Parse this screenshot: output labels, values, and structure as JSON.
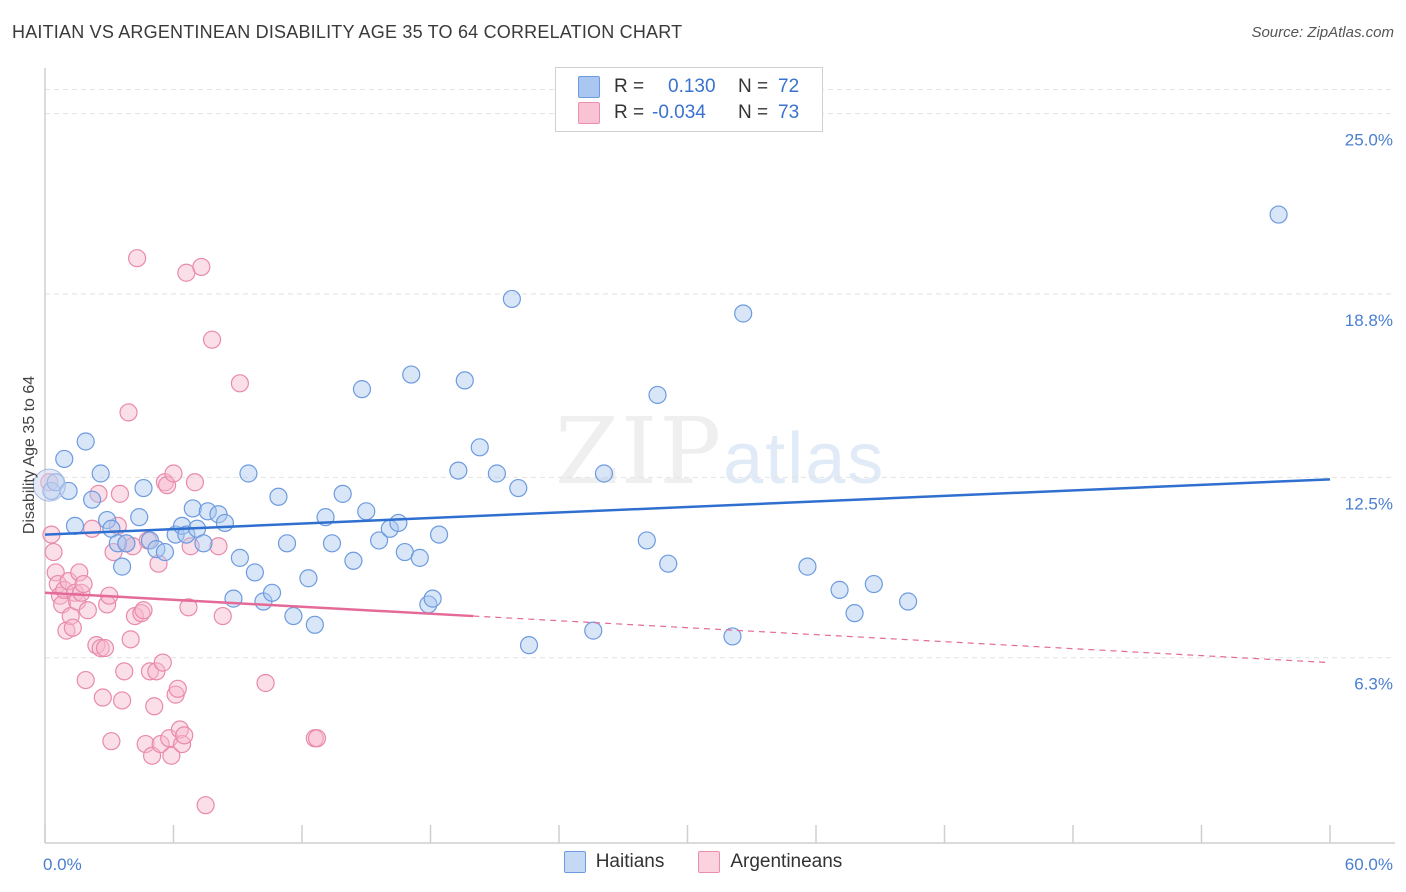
{
  "title": "HAITIAN VS ARGENTINEAN DISABILITY AGE 35 TO 64 CORRELATION CHART",
  "source": "Source: ZipAtlas.com",
  "watermark": {
    "zip": "ZIP",
    "atlas": "atlas"
  },
  "legend": {
    "rows": [
      {
        "r_label": "R =",
        "r_value": "0.130",
        "n_label": "N =",
        "n_value": "72",
        "color": "#a9c7f0",
        "border": "#6d9be0"
      },
      {
        "r_label": "R =",
        "r_value": "-0.034",
        "n_label": "N =",
        "n_value": "73",
        "color": "#f9c3d3",
        "border": "#ec8fae"
      }
    ]
  },
  "bottom_legend": [
    "Haitians",
    "Argentineans"
  ],
  "chart_data": {
    "type": "scatter",
    "title": "HAITIAN VS ARGENTINEAN DISABILITY AGE 35 TO 64 CORRELATION CHART",
    "xlabel": "",
    "ylabel": "Disability Age 35 to 64",
    "xlim": [
      0,
      60
    ],
    "ylim": [
      0,
      26.5
    ],
    "x_tick_labels": [
      "0.0%",
      "60.0%"
    ],
    "y_ticks": [
      6.3,
      12.5,
      18.8,
      25.0
    ],
    "y_tick_labels": [
      "6.3%",
      "12.5%",
      "18.8%",
      "25.0%"
    ],
    "grid": true,
    "legend_position": "top-center",
    "colors": {
      "haitians": "#6d9be0",
      "argentineans": "#ec8fae",
      "haitians_line": "#2f6fcf",
      "argentineans_line": "#e46a97"
    },
    "series": [
      {
        "name": "Haitians",
        "points": [
          [
            0.3,
            12.1
          ],
          [
            0.5,
            12.4
          ],
          [
            0.9,
            13.2
          ],
          [
            1.1,
            12.1
          ],
          [
            1.4,
            10.9
          ],
          [
            1.9,
            13.8
          ],
          [
            2.2,
            11.8
          ],
          [
            2.6,
            12.7
          ],
          [
            2.9,
            11.1
          ],
          [
            3.1,
            10.8
          ],
          [
            3.4,
            10.3
          ],
          [
            3.6,
            9.5
          ],
          [
            3.8,
            10.3
          ],
          [
            4.4,
            11.2
          ],
          [
            4.6,
            12.2
          ],
          [
            4.9,
            10.4
          ],
          [
            5.2,
            10.1
          ],
          [
            5.6,
            10.0
          ],
          [
            6.1,
            10.6
          ],
          [
            6.4,
            10.9
          ],
          [
            6.6,
            10.6
          ],
          [
            6.9,
            11.5
          ],
          [
            7.1,
            10.8
          ],
          [
            7.4,
            10.3
          ],
          [
            7.6,
            11.4
          ],
          [
            8.1,
            11.3
          ],
          [
            8.4,
            11.0
          ],
          [
            8.8,
            8.4
          ],
          [
            9.1,
            9.8
          ],
          [
            9.5,
            12.7
          ],
          [
            9.8,
            9.3
          ],
          [
            10.2,
            8.3
          ],
          [
            10.6,
            8.6
          ],
          [
            10.9,
            11.9
          ],
          [
            11.3,
            10.3
          ],
          [
            11.6,
            7.8
          ],
          [
            12.3,
            9.1
          ],
          [
            12.6,
            7.5
          ],
          [
            13.1,
            11.2
          ],
          [
            13.4,
            10.3
          ],
          [
            13.9,
            12.0
          ],
          [
            14.4,
            9.7
          ],
          [
            14.8,
            15.6
          ],
          [
            15.0,
            11.4
          ],
          [
            15.6,
            10.4
          ],
          [
            16.1,
            10.8
          ],
          [
            16.5,
            11.0
          ],
          [
            16.8,
            10.0
          ],
          [
            17.1,
            16.1
          ],
          [
            17.5,
            9.8
          ],
          [
            17.9,
            8.2
          ],
          [
            18.1,
            8.4
          ],
          [
            18.4,
            10.6
          ],
          [
            19.3,
            12.8
          ],
          [
            19.6,
            15.9
          ],
          [
            20.3,
            13.6
          ],
          [
            21.1,
            12.7
          ],
          [
            21.8,
            18.7
          ],
          [
            22.1,
            12.2
          ],
          [
            22.6,
            6.8
          ],
          [
            25.6,
            7.3
          ],
          [
            26.1,
            12.7
          ],
          [
            28.1,
            10.4
          ],
          [
            28.6,
            15.4
          ],
          [
            29.1,
            9.6
          ],
          [
            32.1,
            7.1
          ],
          [
            32.6,
            18.2
          ],
          [
            35.6,
            9.5
          ],
          [
            37.1,
            8.7
          ],
          [
            37.8,
            7.9
          ],
          [
            38.7,
            8.9
          ],
          [
            40.3,
            8.3
          ],
          [
            57.6,
            21.6
          ]
        ]
      },
      {
        "name": "Argentineans",
        "points": [
          [
            0.2,
            12.4
          ],
          [
            0.3,
            10.6
          ],
          [
            0.4,
            10.0
          ],
          [
            0.5,
            9.3
          ],
          [
            0.6,
            8.9
          ],
          [
            0.7,
            8.5
          ],
          [
            0.8,
            8.2
          ],
          [
            0.9,
            8.7
          ],
          [
            1.0,
            7.3
          ],
          [
            1.1,
            9.0
          ],
          [
            1.2,
            7.8
          ],
          [
            1.3,
            7.4
          ],
          [
            1.4,
            8.6
          ],
          [
            1.5,
            8.3
          ],
          [
            1.6,
            9.3
          ],
          [
            1.7,
            8.6
          ],
          [
            1.8,
            8.9
          ],
          [
            1.9,
            5.6
          ],
          [
            2.0,
            8.0
          ],
          [
            2.2,
            10.8
          ],
          [
            2.4,
            6.8
          ],
          [
            2.5,
            12.0
          ],
          [
            2.6,
            6.7
          ],
          [
            2.7,
            5.0
          ],
          [
            2.8,
            6.7
          ],
          [
            2.9,
            8.2
          ],
          [
            3.0,
            8.5
          ],
          [
            3.1,
            3.5
          ],
          [
            3.2,
            10.0
          ],
          [
            3.4,
            10.9
          ],
          [
            3.5,
            12.0
          ],
          [
            3.6,
            4.9
          ],
          [
            3.7,
            5.9
          ],
          [
            3.8,
            10.3
          ],
          [
            3.9,
            14.8
          ],
          [
            4.0,
            7.0
          ],
          [
            4.1,
            10.2
          ],
          [
            4.2,
            7.8
          ],
          [
            4.3,
            20.1
          ],
          [
            4.5,
            7.9
          ],
          [
            4.6,
            8.0
          ],
          [
            4.7,
            3.4
          ],
          [
            4.8,
            10.4
          ],
          [
            4.9,
            5.9
          ],
          [
            5.0,
            3.0
          ],
          [
            5.1,
            4.7
          ],
          [
            5.2,
            5.9
          ],
          [
            5.3,
            9.6
          ],
          [
            5.4,
            3.4
          ],
          [
            5.5,
            6.2
          ],
          [
            5.6,
            12.4
          ],
          [
            5.7,
            12.3
          ],
          [
            5.8,
            3.6
          ],
          [
            5.9,
            3.0
          ],
          [
            6.0,
            12.7
          ],
          [
            6.1,
            5.1
          ],
          [
            6.2,
            5.3
          ],
          [
            6.3,
            3.9
          ],
          [
            6.4,
            3.4
          ],
          [
            6.5,
            3.7
          ],
          [
            6.6,
            19.6
          ],
          [
            6.7,
            8.1
          ],
          [
            6.8,
            10.2
          ],
          [
            7.0,
            12.4
          ],
          [
            7.3,
            19.8
          ],
          [
            7.5,
            1.3
          ],
          [
            7.8,
            17.3
          ],
          [
            8.1,
            10.2
          ],
          [
            8.3,
            7.8
          ],
          [
            9.1,
            15.8
          ],
          [
            10.3,
            5.5
          ],
          [
            12.6,
            3.6
          ],
          [
            12.7,
            3.6
          ]
        ]
      }
    ],
    "trend_lines": [
      {
        "series": "Haitians",
        "x": [
          0,
          60
        ],
        "y": [
          10.6,
          12.5
        ]
      },
      {
        "series": "Argentineans",
        "x": [
          0,
          20
        ],
        "y": [
          8.6,
          7.8
        ],
        "dashed_extension": {
          "x": [
            20,
            60
          ],
          "y": [
            7.8,
            6.2
          ]
        }
      }
    ]
  }
}
